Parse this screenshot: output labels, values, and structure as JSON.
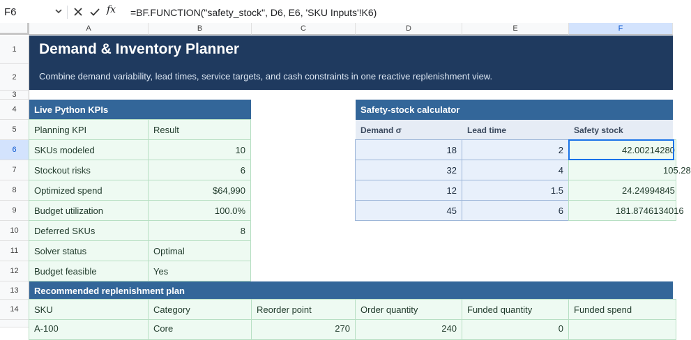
{
  "formula_bar": {
    "name_box": "F6",
    "fx_label": "fx",
    "formula": "=BF.FUNCTION(\"safety_stock\", D6, E6, 'SKU Inputs'!K6)"
  },
  "columns": [
    "A",
    "B",
    "C",
    "D",
    "E",
    "F"
  ],
  "rows": [
    "1",
    "2",
    "3",
    "4",
    "5",
    "6",
    "7",
    "8",
    "9",
    "10",
    "11",
    "12",
    "13",
    "14"
  ],
  "header": {
    "title": "Demand & Inventory Planner",
    "subtitle": "Combine demand variability, lead times, service targets, and cash constraints in one reactive replenishment view."
  },
  "kpis": {
    "title": "Live Python KPIs",
    "headers": [
      "Planning KPI",
      "Result"
    ],
    "rows": [
      {
        "label": "SKUs modeled",
        "value": "10"
      },
      {
        "label": "Stockout risks",
        "value": "6"
      },
      {
        "label": "Optimized spend",
        "value": "$64,990"
      },
      {
        "label": "Budget utilization",
        "value": "100.0%"
      },
      {
        "label": "Deferred SKUs",
        "value": "8"
      },
      {
        "label": "Solver status",
        "value": "Optimal"
      },
      {
        "label": "Budget feasible",
        "value": "Yes"
      }
    ]
  },
  "safety": {
    "title": "Safety-stock calculator",
    "headers": [
      "Demand σ",
      "Lead time",
      "Safety stock"
    ],
    "rows": [
      {
        "demand": "18",
        "lead": "2",
        "stock": "42.00214280"
      },
      {
        "demand": "32",
        "lead": "4",
        "stock": "105.28"
      },
      {
        "demand": "12",
        "lead": "1.5",
        "stock": "24.24994845"
      },
      {
        "demand": "45",
        "lead": "6",
        "stock": "181.8746134016"
      }
    ]
  },
  "plan": {
    "title": "Recommended replenishment plan",
    "headers": [
      "SKU",
      "Category",
      "Reorder point",
      "Order quantity",
      "Funded quantity",
      "Funded spend"
    ],
    "partial_row": [
      "A-100",
      "Core",
      "270",
      "240",
      "0",
      ""
    ]
  },
  "colors": {
    "title_band": "#1f3a5f",
    "section_band": "#336699",
    "kpi_fill": "#eefaf2",
    "input_fill": "#e8f0fb",
    "selection": "#1a73e8"
  }
}
